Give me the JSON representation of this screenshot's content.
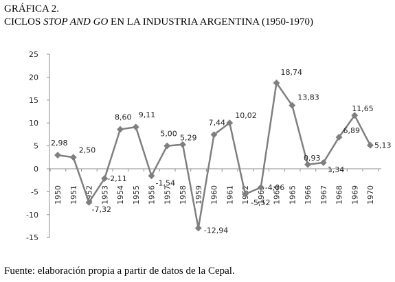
{
  "header": {
    "line1": "GRÁFICA 2.",
    "line2_prefix": "CICLOS ",
    "line2_italic": "STOP AND GO",
    "line2_suffix": " EN LA INDUSTRIA ARGENTINA (1950-1970)"
  },
  "footer": {
    "source": "Fuente: elaboración propia a partir de datos de la Cepal."
  },
  "chart_data": {
    "type": "line",
    "title": "CICLOS STOP AND GO EN LA INDUSTRIA ARGENTINA (1950-1970)",
    "categories": [
      "1950",
      "1951",
      "1952",
      "1953",
      "1954",
      "1955",
      "1956",
      "1957",
      "1958",
      "1959",
      "1960",
      "1961",
      "1962",
      "1963",
      "1964",
      "1965",
      "1966",
      "1967",
      "1968",
      "1969",
      "1970"
    ],
    "series": [
      {
        "values": [
          2.98,
          2.5,
          -7.32,
          -2.11,
          8.6,
          9.11,
          -1.54,
          5.0,
          5.29,
          -12.94,
          7.44,
          10.02,
          -5.52,
          -4.06,
          18.74,
          13.83,
          0.93,
          1.34,
          6.89,
          11.65,
          5.13
        ],
        "labels": [
          "2,98",
          "2,50",
          "-7,32",
          "-2,11",
          "8,60",
          "9,11",
          "-1,54",
          "5,00",
          "5,29",
          "-12,94",
          "7,44",
          "10,02",
          "-5,52",
          "-4,06",
          "18,74",
          "13,83",
          "0,93",
          "1,34",
          "6,89",
          "11,65",
          "5,13"
        ],
        "color": "#7f7f7f"
      }
    ],
    "ylim": [
      -15,
      25
    ],
    "yticks": [
      "25",
      "20",
      "15",
      "10",
      "5",
      "0",
      "-5",
      "-10",
      "-15"
    ],
    "xlabel": "",
    "ylabel": "",
    "grid": false,
    "legend": "none"
  }
}
